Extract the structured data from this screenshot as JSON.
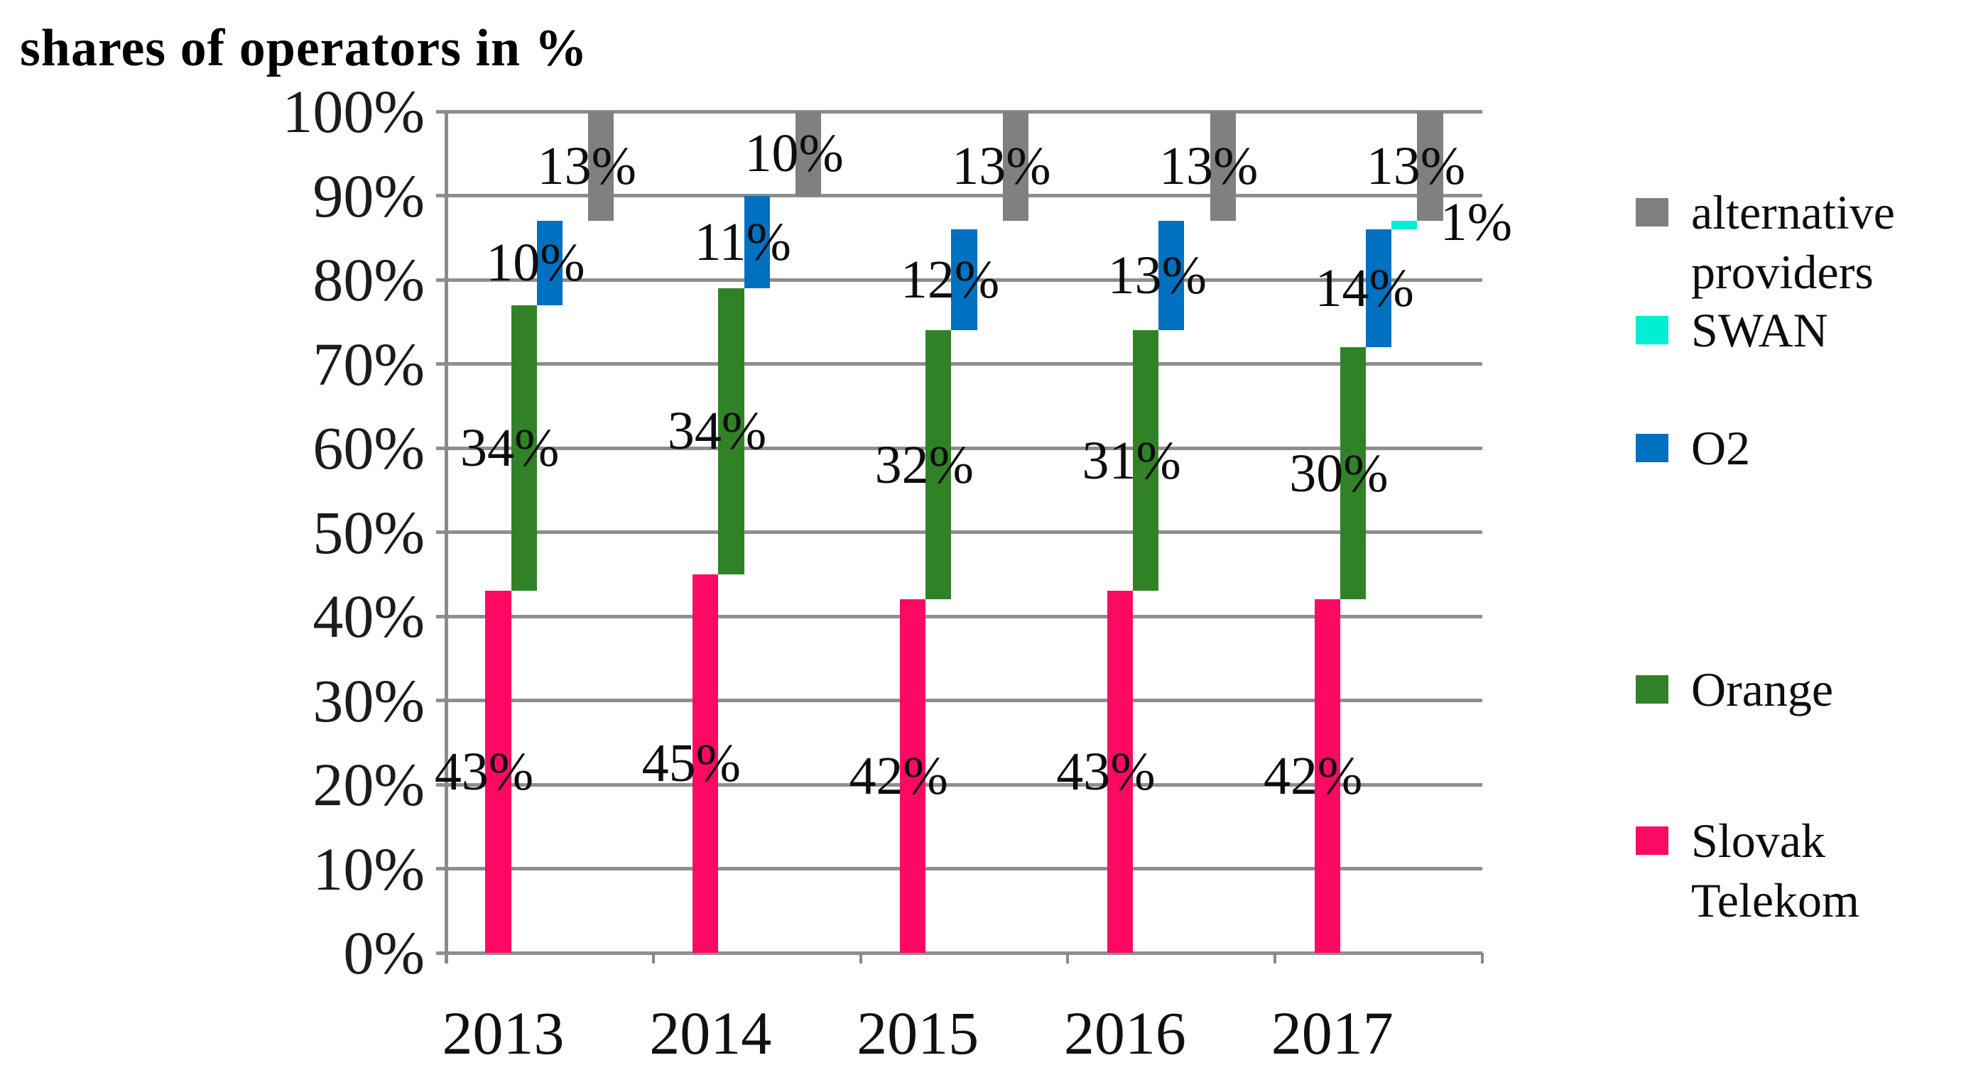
{
  "title": "shares of operators in %",
  "chart_data": {
    "type": "bar",
    "subtype": "stacked-segments-offset-columns",
    "title": "shares of operators in %",
    "categories": [
      "2013",
      "2014",
      "2015",
      "2016",
      "2017"
    ],
    "series": [
      {
        "name": "Slovak Telekom",
        "color": "#fb0963",
        "values": [
          43,
          45,
          42,
          43,
          42
        ],
        "labels": [
          "43%",
          "45%",
          "42%",
          "43%",
          "42%"
        ]
      },
      {
        "name": "Orange",
        "color": "#318227",
        "values": [
          34,
          34,
          32,
          31,
          30
        ],
        "labels": [
          "34%",
          "34%",
          "32%",
          "31%",
          "30%"
        ]
      },
      {
        "name": "O2",
        "color": "#0070c0",
        "values": [
          10,
          11,
          12,
          13,
          14
        ],
        "labels": [
          "10%",
          "11%",
          "12%",
          "13%",
          "14%"
        ]
      },
      {
        "name": "SWAN",
        "color": "#00eed4",
        "values": [
          0,
          0,
          0,
          0,
          1
        ],
        "labels": [
          "",
          "",
          "",
          "",
          "1%"
        ]
      },
      {
        "name": "alternative providers",
        "color": "#808080",
        "values": [
          13,
          10,
          13,
          13,
          13
        ],
        "labels": [
          "13%",
          "10%",
          "13%",
          "13%",
          "13%"
        ],
        "anchor": "top"
      }
    ],
    "xlabel": "",
    "ylabel": "",
    "ylim": [
      0,
      100
    ],
    "ytick_labels": [
      "0%",
      "10%",
      "20%",
      "30%",
      "40%",
      "50%",
      "60%",
      "70%",
      "80%",
      "90%",
      "100%"
    ],
    "grid": "horizontal",
    "legend_position": "right"
  },
  "legend": {
    "items": [
      {
        "label": "alternative providers",
        "color": "#808080"
      },
      {
        "label": "SWAN",
        "color": "#00eed4"
      },
      {
        "label": "O2",
        "color": "#0070c0"
      },
      {
        "label": "Orange",
        "color": "#318227"
      },
      {
        "label": "Slovak Telekom",
        "color": "#fb0963"
      }
    ]
  }
}
